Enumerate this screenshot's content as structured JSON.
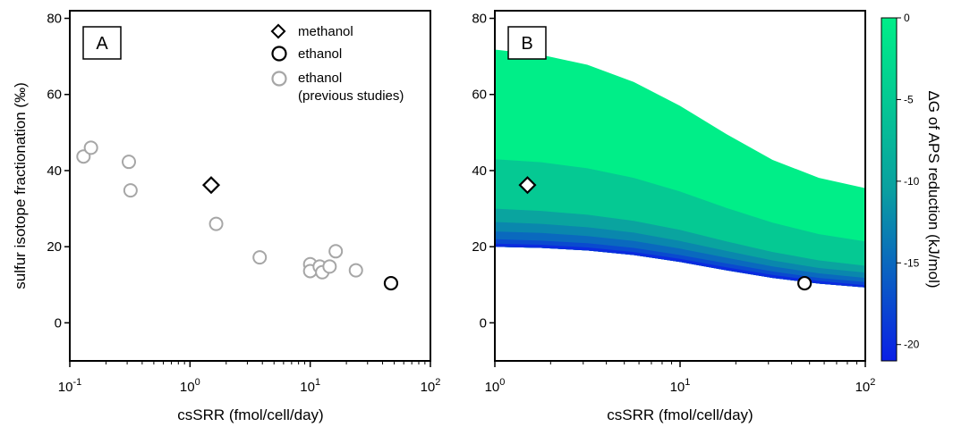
{
  "chart_data": [
    {
      "type": "scatter",
      "panel_label": "A",
      "xlabel": "csSRR (fmol/cell/day)",
      "ylabel": "sulfur isotope fractionation (‰)",
      "xscale": "log",
      "xlim": [
        0.1,
        100
      ],
      "ylim": [
        -10,
        82
      ],
      "x_ticks": [
        0.1,
        1,
        10,
        100
      ],
      "y_ticks": [
        0,
        20,
        40,
        60,
        80
      ],
      "y_tick_labels": [
        "0",
        "20",
        "40",
        "60",
        "80"
      ],
      "grid": false,
      "legend_position": "top-right",
      "series": [
        {
          "name": "methanol",
          "marker": "diamond",
          "color": "#000000",
          "points": [
            {
              "x": 1.5,
              "y": 36.2
            }
          ]
        },
        {
          "name": "ethanol",
          "marker": "circle",
          "color": "#000000",
          "points": [
            {
              "x": 47,
              "y": 10.4
            }
          ]
        },
        {
          "name": "ethanol\n(previous studies)",
          "marker": "circle",
          "color": "#a6a6a6",
          "points": [
            {
              "x": 0.13,
              "y": 43.7
            },
            {
              "x": 0.15,
              "y": 46.0
            },
            {
              "x": 0.31,
              "y": 42.3
            },
            {
              "x": 0.32,
              "y": 34.8
            },
            {
              "x": 1.65,
              "y": 26.0
            },
            {
              "x": 3.8,
              "y": 17.2
            },
            {
              "x": 10.0,
              "y": 15.4
            },
            {
              "x": 10.0,
              "y": 13.6
            },
            {
              "x": 12.0,
              "y": 14.8
            },
            {
              "x": 12.6,
              "y": 13.3
            },
            {
              "x": 14.5,
              "y": 14.8
            },
            {
              "x": 16.3,
              "y": 18.8
            },
            {
              "x": 24.0,
              "y": 13.8
            }
          ]
        }
      ]
    },
    {
      "type": "area",
      "panel_label": "B",
      "xlabel": "csSRR (fmol/cell/day)",
      "xscale": "log",
      "xlim": [
        1,
        100
      ],
      "ylim": [
        -10,
        82
      ],
      "x_ticks": [
        1,
        10,
        100
      ],
      "y_ticks": [
        0,
        20,
        40,
        60,
        80
      ],
      "y_tick_labels": [
        "0",
        "20",
        "40",
        "60",
        "80"
      ],
      "grid": false,
      "x_samples": [
        1,
        1.78,
        3.16,
        5.62,
        10,
        17.8,
        31.6,
        56.2,
        100
      ],
      "lower_bound": [
        20.0,
        19.7,
        19.0,
        17.8,
        16.0,
        13.8,
        11.8,
        10.3,
        9.3
      ],
      "bands": [
        {
          "dG": -20,
          "upper": [
            20.8,
            20.5,
            19.8,
            18.6,
            16.8,
            14.6,
            12.6,
            11.0,
            9.9
          ]
        },
        {
          "dG": -17.5,
          "upper": [
            22.0,
            21.6,
            20.9,
            19.7,
            17.8,
            15.6,
            13.5,
            11.8,
            10.7
          ]
        },
        {
          "dG": -15,
          "upper": [
            24.0,
            23.6,
            22.8,
            21.5,
            19.5,
            17.1,
            14.8,
            13.0,
            11.8
          ]
        },
        {
          "dG": -12.5,
          "upper": [
            26.5,
            26.0,
            25.1,
            23.7,
            21.5,
            18.9,
            16.4,
            14.4,
            13.2
          ]
        },
        {
          "dG": -10,
          "upper": [
            30.0,
            29.4,
            28.4,
            26.8,
            24.4,
            21.4,
            18.6,
            16.4,
            15.0
          ]
        },
        {
          "dG": -5,
          "upper": [
            43.0,
            42.2,
            40.6,
            38.1,
            34.5,
            30.2,
            26.3,
            23.3,
            21.4
          ]
        },
        {
          "dG": 0,
          "upper": [
            71.8,
            70.4,
            67.8,
            63.3,
            57.0,
            49.6,
            42.8,
            38.1,
            35.4
          ]
        }
      ],
      "points": [
        {
          "name": "methanol",
          "marker": "diamond",
          "x": 1.5,
          "y": 36.2
        },
        {
          "name": "ethanol",
          "marker": "circle",
          "x": 47,
          "y": 10.4
        }
      ],
      "colorbar": {
        "label": "ΔG of APS reduction (kJ/mol)",
        "range": [
          -21,
          0
        ],
        "ticks": [
          0,
          -5,
          -10,
          -15,
          -20
        ],
        "tick_labels": [
          "0",
          "-5",
          "-10",
          "-15",
          "-20"
        ],
        "colors": {
          "low": "#0a1fe6",
          "mid": "#0aa0a0",
          "high": "#00ee88"
        }
      }
    }
  ]
}
